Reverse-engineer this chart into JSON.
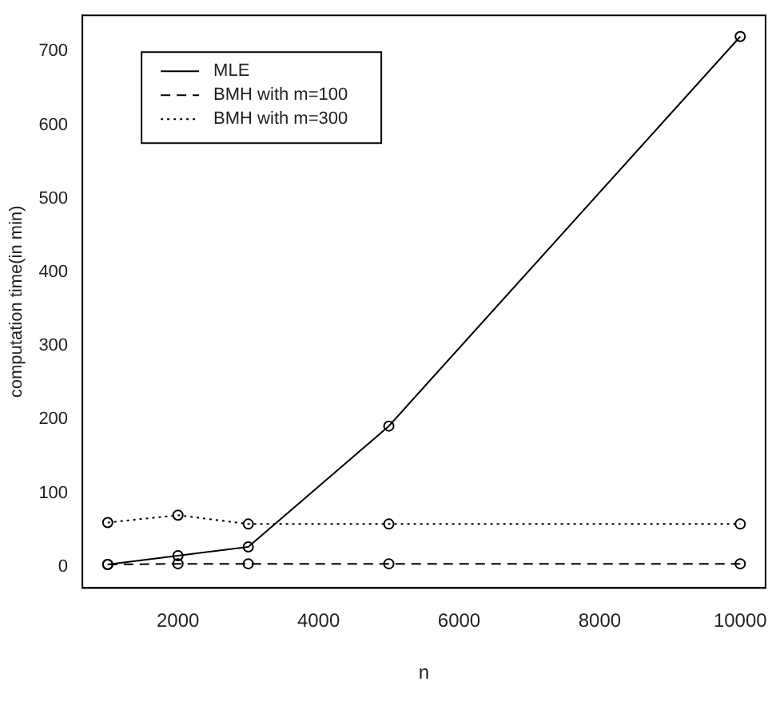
{
  "chart_data": {
    "type": "line",
    "xlabel": "n",
    "ylabel": "computation time(in min)",
    "x": [
      1000,
      2000,
      3000,
      5000,
      10000
    ],
    "series": [
      {
        "name": "MLE",
        "color": "#000000",
        "line_style": "solid",
        "values": [
          3,
          15,
          27,
          191,
          720
        ]
      },
      {
        "name": "BMH with m=100",
        "color": "#000000",
        "line_style": "dashed",
        "values": [
          3,
          4,
          4,
          4,
          4
        ]
      },
      {
        "name": "BMH with m=300",
        "color": "#000000",
        "line_style": "dotted",
        "values": [
          60,
          70,
          58,
          58,
          58
        ]
      }
    ],
    "marker": "circle",
    "xlim": [
      640,
      10360
    ],
    "ylim": [
      -28.8,
      748.8
    ],
    "xticks": [
      2000,
      4000,
      6000,
      8000,
      10000
    ],
    "yticks": [
      0,
      100,
      200,
      300,
      400,
      500,
      600,
      700
    ],
    "grid": false,
    "legend": "top left"
  }
}
